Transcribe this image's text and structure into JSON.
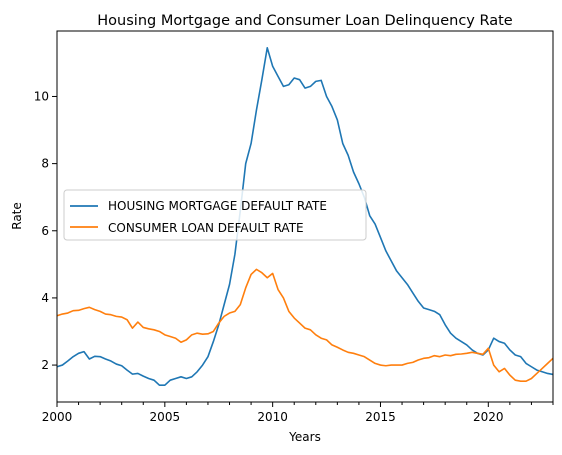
{
  "chart_data": {
    "type": "line",
    "title": "Housing Mortgage and Consumer Loan Delinquency Rate",
    "xlabel": "Years",
    "ylabel": "Rate",
    "xlim": [
      2000,
      2023
    ],
    "ylim": [
      0.9,
      11.95
    ],
    "x_ticks": [
      2000,
      2005,
      2010,
      2015,
      2020
    ],
    "y_ticks": [
      2,
      4,
      6,
      8,
      10
    ],
    "grid": false,
    "legend_position": "center-left",
    "series": [
      {
        "name": "HOUSING MORTGAGE DEFAULT RATE",
        "color": "#1f77b4",
        "x": [
          2000.0,
          2000.25,
          2000.5,
          2000.75,
          2001.0,
          2001.25,
          2001.5,
          2001.75,
          2002.0,
          2002.25,
          2002.5,
          2002.75,
          2003.0,
          2003.25,
          2003.5,
          2003.75,
          2004.0,
          2004.25,
          2004.5,
          2004.75,
          2005.0,
          2005.25,
          2005.5,
          2005.75,
          2006.0,
          2006.25,
          2006.5,
          2006.75,
          2007.0,
          2007.25,
          2007.5,
          2007.75,
          2008.0,
          2008.25,
          2008.5,
          2008.75,
          2009.0,
          2009.25,
          2009.5,
          2009.75,
          2010.0,
          2010.25,
          2010.5,
          2010.75,
          2011.0,
          2011.25,
          2011.5,
          2011.75,
          2012.0,
          2012.25,
          2012.5,
          2012.75,
          2013.0,
          2013.25,
          2013.5,
          2013.75,
          2014.0,
          2014.25,
          2014.5,
          2014.75,
          2015.0,
          2015.25,
          2015.5,
          2015.75,
          2016.0,
          2016.25,
          2016.5,
          2016.75,
          2017.0,
          2017.25,
          2017.5,
          2017.75,
          2018.0,
          2018.25,
          2018.5,
          2018.75,
          2019.0,
          2019.25,
          2019.5,
          2019.75,
          2020.0,
          2020.25,
          2020.5,
          2020.75,
          2021.0,
          2021.25,
          2021.5,
          2021.75,
          2022.0,
          2022.25,
          2022.5,
          2022.75,
          2023.0
        ],
        "values": [
          1.95,
          2.0,
          2.12,
          2.25,
          2.35,
          2.4,
          2.18,
          2.26,
          2.25,
          2.18,
          2.12,
          2.03,
          1.98,
          1.85,
          1.73,
          1.75,
          1.67,
          1.6,
          1.55,
          1.4,
          1.4,
          1.55,
          1.6,
          1.65,
          1.6,
          1.65,
          1.8,
          2.0,
          2.25,
          2.7,
          3.2,
          3.8,
          4.4,
          5.3,
          6.6,
          8.0,
          8.6,
          9.6,
          10.5,
          11.45,
          10.9,
          10.6,
          10.3,
          10.35,
          10.55,
          10.5,
          10.25,
          10.3,
          10.45,
          10.48,
          10.0,
          9.7,
          9.3,
          8.6,
          8.25,
          7.75,
          7.4,
          7.0,
          6.45,
          6.2,
          5.8,
          5.4,
          5.1,
          4.8,
          4.6,
          4.4,
          4.15,
          3.9,
          3.7,
          3.65,
          3.6,
          3.5,
          3.2,
          2.95,
          2.8,
          2.7,
          2.6,
          2.45,
          2.35,
          2.3,
          2.45,
          2.8,
          2.7,
          2.65,
          2.45,
          2.3,
          2.25,
          2.05,
          1.95,
          1.85,
          1.8,
          1.75,
          1.72
        ]
      },
      {
        "name": "CONSUMER LOAN DEFAULT RATE",
        "color": "#ff7f0e",
        "x": [
          2000.0,
          2000.25,
          2000.5,
          2000.75,
          2001.0,
          2001.25,
          2001.5,
          2001.75,
          2002.0,
          2002.25,
          2002.5,
          2002.75,
          2003.0,
          2003.25,
          2003.5,
          2003.75,
          2004.0,
          2004.25,
          2004.5,
          2004.75,
          2005.0,
          2005.25,
          2005.5,
          2005.75,
          2006.0,
          2006.25,
          2006.5,
          2006.75,
          2007.0,
          2007.25,
          2007.5,
          2007.75,
          2008.0,
          2008.25,
          2008.5,
          2008.75,
          2009.0,
          2009.25,
          2009.5,
          2009.75,
          2010.0,
          2010.25,
          2010.5,
          2010.75,
          2011.0,
          2011.25,
          2011.5,
          2011.75,
          2012.0,
          2012.25,
          2012.5,
          2012.75,
          2013.0,
          2013.25,
          2013.5,
          2013.75,
          2014.0,
          2014.25,
          2014.5,
          2014.75,
          2015.0,
          2015.25,
          2015.5,
          2015.75,
          2016.0,
          2016.25,
          2016.5,
          2016.75,
          2017.0,
          2017.25,
          2017.5,
          2017.75,
          2018.0,
          2018.25,
          2018.5,
          2018.75,
          2019.0,
          2019.25,
          2019.5,
          2019.75,
          2020.0,
          2020.25,
          2020.5,
          2020.75,
          2021.0,
          2021.25,
          2021.5,
          2021.75,
          2022.0,
          2022.25,
          2022.5,
          2022.75,
          2023.0
        ],
        "values": [
          3.47,
          3.52,
          3.55,
          3.62,
          3.63,
          3.68,
          3.72,
          3.65,
          3.6,
          3.52,
          3.5,
          3.45,
          3.43,
          3.35,
          3.1,
          3.28,
          3.12,
          3.08,
          3.05,
          3.0,
          2.9,
          2.85,
          2.8,
          2.68,
          2.75,
          2.9,
          2.95,
          2.92,
          2.93,
          3.0,
          3.25,
          3.45,
          3.55,
          3.6,
          3.8,
          4.3,
          4.7,
          4.85,
          4.75,
          4.6,
          4.73,
          4.25,
          4.0,
          3.6,
          3.4,
          3.25,
          3.1,
          3.05,
          2.9,
          2.8,
          2.75,
          2.6,
          2.53,
          2.45,
          2.38,
          2.35,
          2.3,
          2.25,
          2.15,
          2.05,
          2.0,
          1.98,
          2.0,
          2.0,
          2.0,
          2.05,
          2.08,
          2.15,
          2.2,
          2.22,
          2.28,
          2.25,
          2.3,
          2.28,
          2.32,
          2.33,
          2.35,
          2.38,
          2.35,
          2.32,
          2.5,
          2.0,
          1.8,
          1.9,
          1.7,
          1.55,
          1.52,
          1.52,
          1.6,
          1.75,
          1.9,
          2.05,
          2.2
        ]
      }
    ]
  }
}
